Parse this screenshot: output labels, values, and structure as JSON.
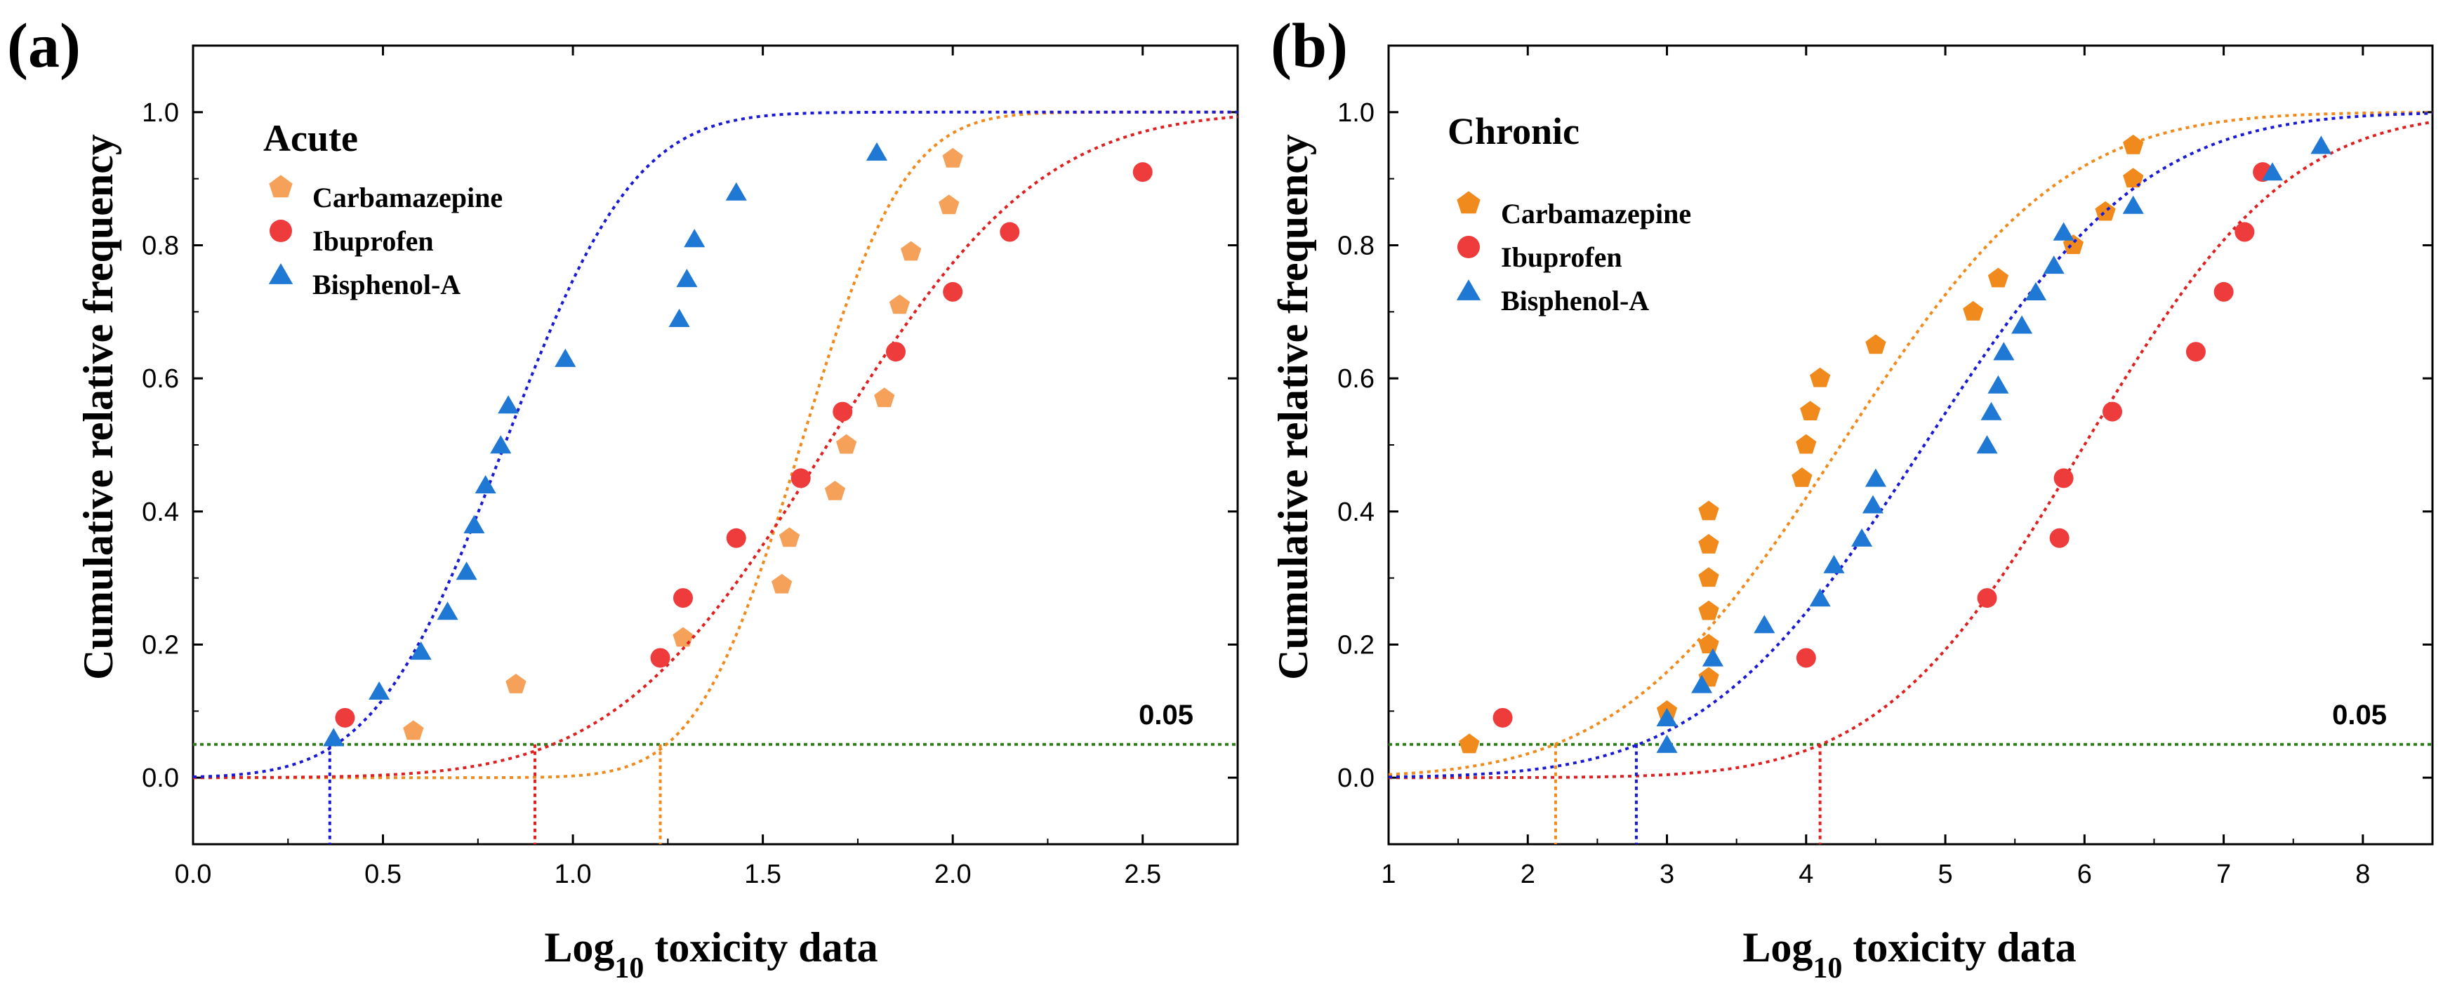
{
  "chart_data": [
    {
      "type": "scatter",
      "panel_label": "(a)",
      "title": "Acute",
      "xlabel_prefix": "Log",
      "xlabel_sub": "10",
      "xlabel_suffix": " toxicity data",
      "ylabel": "Cumulative relative frequency",
      "xlim": [
        0.0,
        2.75
      ],
      "ylim": [
        -0.1,
        1.1
      ],
      "xticks": [
        0.0,
        0.5,
        1.0,
        1.5,
        2.0,
        2.5
      ],
      "xtick_labels": [
        "0.0",
        "0.5",
        "1.0",
        "1.5",
        "2.0",
        "2.5"
      ],
      "yticks": [
        0.0,
        0.2,
        0.4,
        0.6,
        0.8,
        1.0
      ],
      "ytick_labels": [
        "0.0",
        "0.2",
        "0.4",
        "0.6",
        "0.8",
        "1.0"
      ],
      "threshold": {
        "value": 0.05,
        "label": "0.05",
        "color": "#2e7d1a"
      },
      "series": [
        {
          "name": "Carbamazepine",
          "marker": "pentagon",
          "color": "#f5a15a",
          "curve_color": "#f08a1c",
          "x": [
            0.58,
            0.85,
            1.29,
            1.55,
            1.57,
            1.69,
            1.72,
            1.82,
            1.86,
            1.89,
            1.99,
            2.0
          ],
          "y": [
            0.07,
            0.14,
            0.21,
            0.29,
            0.36,
            0.43,
            0.5,
            0.57,
            0.71,
            0.79,
            0.86,
            0.93
          ],
          "fit": {
            "mu": 1.6,
            "sigma": 0.215,
            "hc5": 1.23
          }
        },
        {
          "name": "Ibuprofen",
          "marker": "circle",
          "color": "#ee3b3b",
          "curve_color": "#e02020",
          "x": [
            0.4,
            1.23,
            1.29,
            1.43,
            1.6,
            1.71,
            1.85,
            2.0,
            2.15,
            2.5
          ],
          "y": [
            0.09,
            0.18,
            0.27,
            0.36,
            0.45,
            0.55,
            0.64,
            0.73,
            0.82,
            0.91
          ],
          "fit": {
            "mu": 1.67,
            "sigma": 0.44,
            "hc5": 0.9
          }
        },
        {
          "name": "Bisphenol-A",
          "marker": "triangle",
          "color": "#1f78d4",
          "curve_color": "#1a1ad6",
          "x": [
            0.37,
            0.49,
            0.6,
            0.67,
            0.72,
            0.74,
            0.77,
            0.81,
            0.83,
            0.98,
            1.28,
            1.3,
            1.32,
            1.43,
            1.8
          ],
          "y": [
            0.06,
            0.13,
            0.19,
            0.25,
            0.31,
            0.38,
            0.44,
            0.5,
            0.56,
            0.63,
            0.69,
            0.75,
            0.81,
            0.88,
            0.94
          ],
          "fit": {
            "mu": 0.82,
            "sigma": 0.27,
            "hc5": 0.36
          }
        }
      ]
    },
    {
      "type": "scatter",
      "panel_label": "(b)",
      "title": "Chronic",
      "xlabel_prefix": "Log",
      "xlabel_sub": "10",
      "xlabel_suffix": " toxicity data",
      "ylabel": "Cumulative relative frequency",
      "xlim": [
        1.0,
        8.5
      ],
      "ylim": [
        -0.1,
        1.1
      ],
      "xticks": [
        1,
        2,
        3,
        4,
        5,
        6,
        7,
        8
      ],
      "xtick_labels": [
        "1",
        "2",
        "3",
        "4",
        "5",
        "6",
        "7",
        "8"
      ],
      "yticks": [
        0.0,
        0.2,
        0.4,
        0.6,
        0.8,
        1.0
      ],
      "ytick_labels": [
        "0.0",
        "0.2",
        "0.4",
        "0.6",
        "0.8",
        "1.0"
      ],
      "threshold": {
        "value": 0.05,
        "label": "0.05",
        "color": "#2e7d1a"
      },
      "series": [
        {
          "name": "Carbamazepine",
          "marker": "pentagon",
          "color": "#f08a1c",
          "curve_color": "#f08a1c",
          "x": [
            1.58,
            3.0,
            3.3,
            3.3,
            3.3,
            3.3,
            3.3,
            3.3,
            3.97,
            4.0,
            4.03,
            4.1,
            4.5,
            5.2,
            5.38,
            5.92,
            6.15,
            6.35,
            6.35
          ],
          "y": [
            0.05,
            0.1,
            0.15,
            0.2,
            0.25,
            0.3,
            0.35,
            0.4,
            0.45,
            0.5,
            0.55,
            0.6,
            0.65,
            0.7,
            0.75,
            0.8,
            0.85,
            0.9,
            0.95
          ],
          "fit": {
            "mu": 4.25,
            "sigma": 1.25,
            "hc5": 2.2
          }
        },
        {
          "name": "Ibuprofen",
          "marker": "circle",
          "color": "#ee3b3b",
          "curve_color": "#e02020",
          "x": [
            1.82,
            4.0,
            5.3,
            5.82,
            5.85,
            6.2,
            6.8,
            7.0,
            7.15,
            7.28
          ],
          "y": [
            0.09,
            0.18,
            0.27,
            0.36,
            0.45,
            0.55,
            0.64,
            0.73,
            0.82,
            0.91
          ],
          "fit": {
            "mu": 6.0,
            "sigma": 1.15,
            "hc5": 4.1
          }
        },
        {
          "name": "Bisphenol-A",
          "marker": "triangle",
          "color": "#1f78d4",
          "curve_color": "#1a1ad6",
          "x": [
            3.0,
            3.0,
            3.25,
            3.33,
            3.7,
            4.1,
            4.2,
            4.4,
            4.48,
            4.5,
            5.3,
            5.33,
            5.38,
            5.42,
            5.55,
            5.65,
            5.78,
            5.85,
            6.35,
            7.35,
            7.7
          ],
          "y": [
            0.05,
            0.09,
            0.14,
            0.18,
            0.23,
            0.27,
            0.32,
            0.36,
            0.41,
            0.45,
            0.5,
            0.55,
            0.59,
            0.64,
            0.68,
            0.73,
            0.77,
            0.82,
            0.86,
            0.91,
            0.95
          ],
          "fit": {
            "mu": 4.85,
            "sigma": 1.25,
            "hc5": 2.78
          }
        }
      ]
    }
  ]
}
